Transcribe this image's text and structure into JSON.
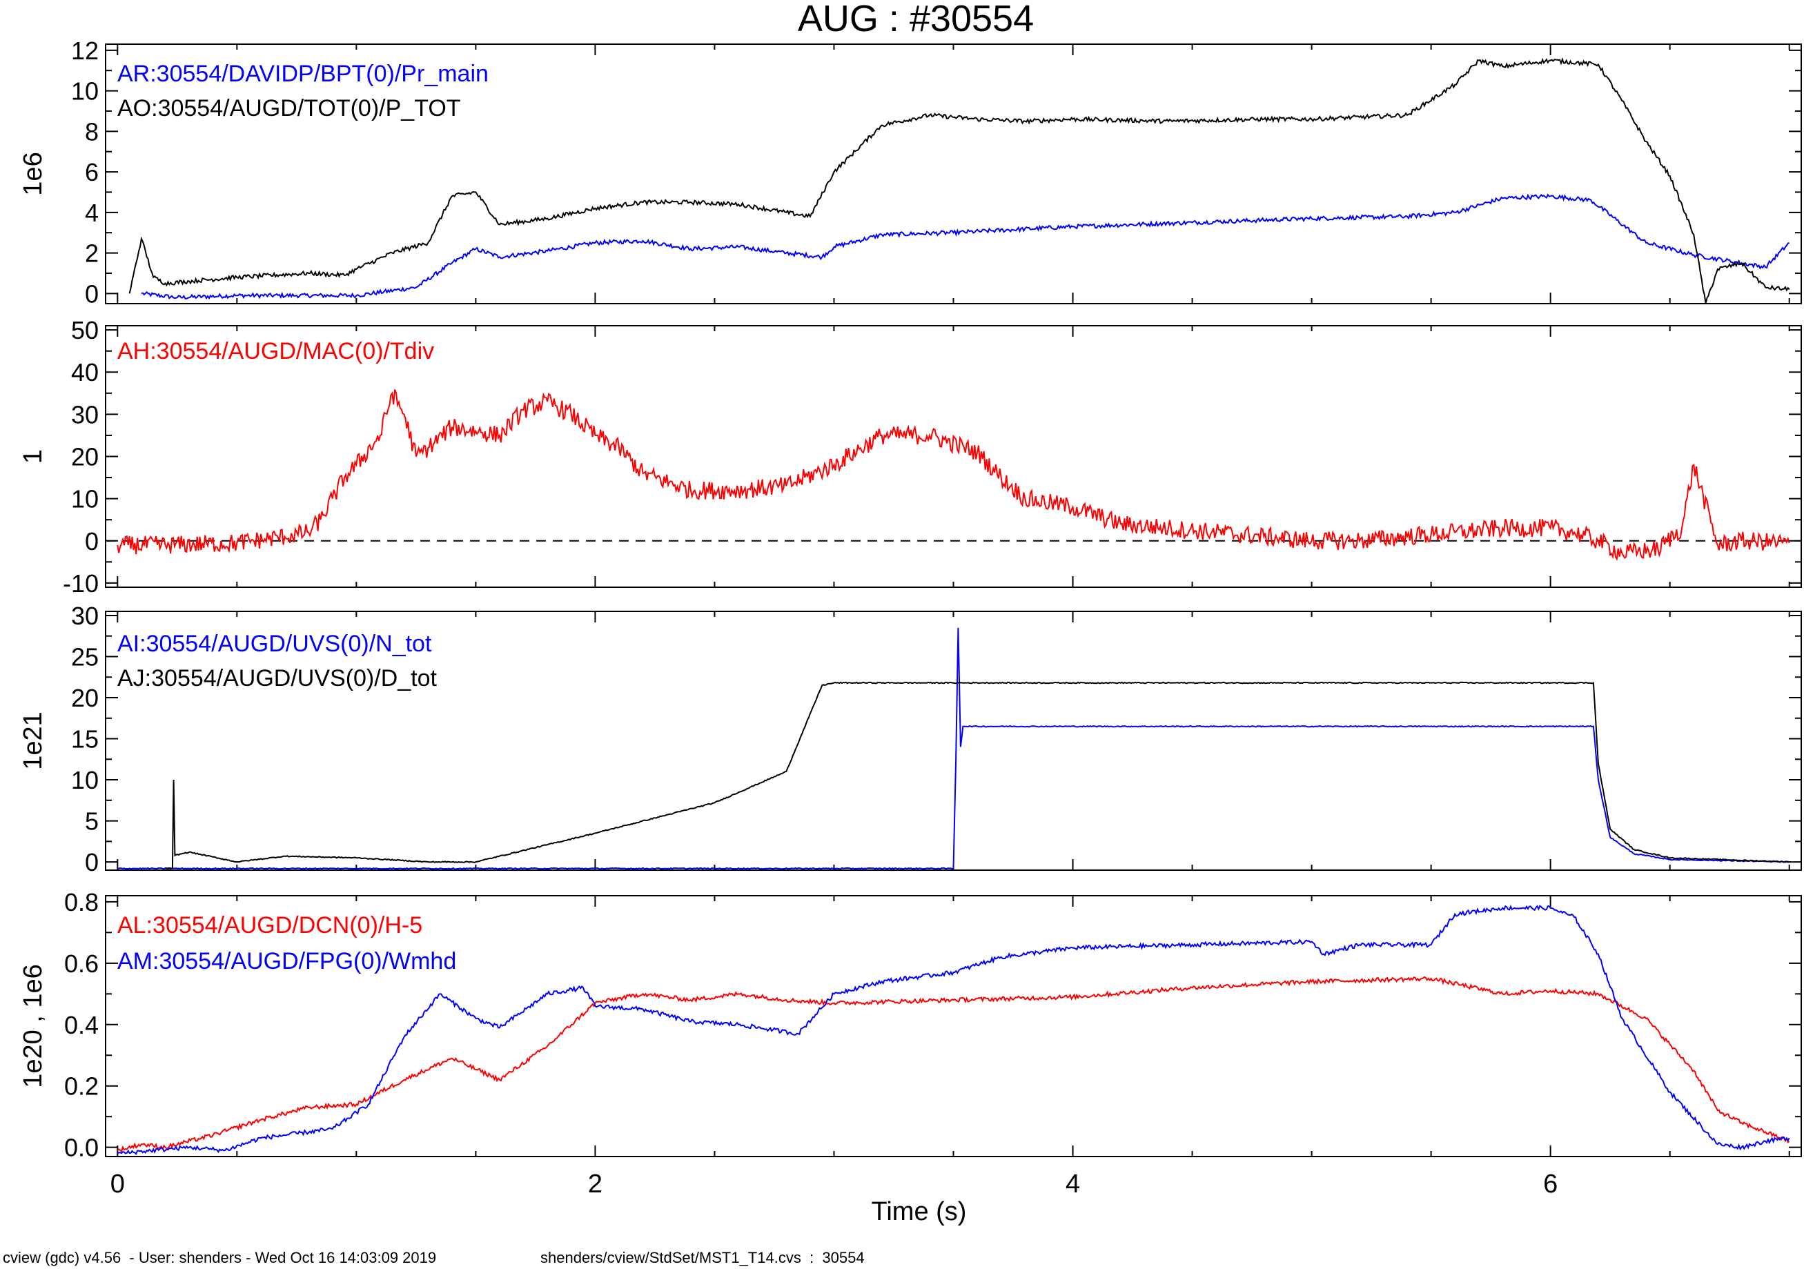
{
  "title": "AUG : #30554",
  "footer": {
    "left": "cview (gdc) v4.56  - User: shenders - Wed Oct 16 14:03:09 2019",
    "right": "shenders/cview/StdSet/MST1_T14.cvs  :  30554"
  },
  "chart_data": [
    {
      "type": "line",
      "ylabel": "1e6",
      "ylim": [
        -0.5,
        12.3
      ],
      "yticks": [
        0,
        2,
        4,
        6,
        8,
        10,
        12
      ],
      "xlim": [
        -0.05,
        7.05
      ],
      "legend": [
        "AR:30554/DAVIDP/BPT(0)/Pr_main",
        "AO:30554/AUGD/TOT(0)/P_TOT"
      ],
      "series": [
        {
          "name": "AR:30554/DAVIDP/BPT(0)/Pr_main",
          "color": "#0000ff",
          "x": [
            0.1,
            0.25,
            0.5,
            0.75,
            1.0,
            1.25,
            1.4,
            1.5,
            1.6,
            1.8,
            2.0,
            2.2,
            2.4,
            2.6,
            2.8,
            2.95,
            3.0,
            3.2,
            3.5,
            4.0,
            4.5,
            5.0,
            5.4,
            5.6,
            5.8,
            6.0,
            6.17,
            6.4,
            6.6,
            6.9,
            7.0
          ],
          "y": [
            0.0,
            -0.2,
            -0.1,
            -0.1,
            -0.1,
            0.3,
            1.5,
            2.2,
            1.8,
            2.1,
            2.5,
            2.6,
            2.2,
            2.3,
            2.0,
            1.8,
            2.3,
            2.9,
            3.0,
            3.3,
            3.5,
            3.7,
            3.8,
            4.0,
            4.7,
            4.8,
            4.6,
            2.5,
            1.9,
            1.3,
            2.5
          ]
        },
        {
          "name": "AO:30554/AUGD/TOT(0)/P_TOT",
          "color": "#000000",
          "x": [
            0.05,
            0.1,
            0.15,
            0.2,
            0.3,
            0.5,
            0.8,
            0.95,
            1.0,
            1.15,
            1.3,
            1.4,
            1.5,
            1.6,
            1.8,
            2.0,
            2.2,
            2.4,
            2.6,
            2.8,
            2.9,
            3.0,
            3.2,
            3.4,
            3.6,
            3.8,
            4.0,
            4.4,
            4.8,
            5.0,
            5.2,
            5.4,
            5.6,
            5.7,
            5.8,
            6.0,
            6.2,
            6.3,
            6.4,
            6.5,
            6.6,
            6.65,
            6.7,
            6.8,
            6.9,
            7.0
          ],
          "y": [
            0.0,
            2.7,
            0.8,
            0.5,
            0.6,
            0.8,
            1.0,
            0.9,
            1.2,
            2.0,
            2.5,
            4.8,
            5.0,
            3.4,
            3.7,
            4.2,
            4.5,
            4.5,
            4.4,
            4.0,
            3.8,
            6.0,
            8.3,
            8.8,
            8.6,
            8.5,
            8.6,
            8.5,
            8.6,
            8.6,
            8.7,
            8.8,
            10.3,
            11.5,
            11.2,
            11.5,
            11.3,
            9.5,
            7.5,
            5.8,
            2.9,
            -0.5,
            1.2,
            1.5,
            0.3,
            0.2
          ]
        }
      ]
    },
    {
      "type": "line",
      "ylabel": "1",
      "ylim": [
        -11,
        51
      ],
      "yticks": [
        -10,
        0,
        10,
        20,
        30,
        40,
        50
      ],
      "xlim": [
        -0.05,
        7.05
      ],
      "reference_line": 0,
      "legend": [
        "AH:30554/AUGD/MAC(0)/Tdiv"
      ],
      "series": [
        {
          "name": "AH:30554/AUGD/MAC(0)/Tdiv",
          "color": "#ff0000",
          "x": [
            0,
            0.2,
            0.5,
            0.7,
            0.8,
            0.85,
            0.9,
            0.95,
            1.0,
            1.1,
            1.15,
            1.2,
            1.25,
            1.3,
            1.4,
            1.5,
            1.6,
            1.7,
            1.8,
            1.9,
            2.0,
            2.1,
            2.2,
            2.4,
            2.6,
            2.8,
            3.0,
            3.2,
            3.4,
            3.6,
            3.7,
            3.8,
            4.0,
            4.2,
            4.4,
            4.6,
            4.8,
            5.0,
            5.2,
            5.4,
            5.6,
            5.8,
            6.0,
            6.1,
            6.2,
            6.3,
            6.45,
            6.55,
            6.6,
            6.7,
            6.8,
            7.0
          ],
          "y": [
            -1,
            -1,
            -0.5,
            1,
            2,
            5,
            10,
            15,
            18,
            25,
            35,
            30,
            20,
            22,
            27,
            26,
            25,
            31,
            33,
            30,
            25,
            22,
            16,
            12,
            12,
            13,
            18,
            25,
            25,
            21,
            15,
            10,
            8,
            4,
            3,
            2,
            1,
            0,
            0,
            1,
            2,
            3,
            3,
            2,
            0,
            -3,
            -2,
            3,
            18,
            -1,
            0,
            -0.5
          ]
        }
      ]
    },
    {
      "type": "line",
      "ylabel": "1e21",
      "ylim": [
        -1,
        30.5
      ],
      "yticks": [
        0,
        5,
        10,
        15,
        20,
        25,
        30
      ],
      "xlim": [
        -0.05,
        7.05
      ],
      "legend": [
        "AI:30554/AUGD/UVS(0)/N_tot",
        "AJ:30554/AUGD/UVS(0)/D_tot"
      ],
      "series": [
        {
          "name": "AI:30554/AUGD/UVS(0)/N_tot",
          "color": "#0000ff",
          "x": [
            0,
            3.5,
            3.51,
            3.52,
            3.53,
            3.54,
            3.55,
            6.18,
            6.2,
            6.25,
            6.35,
            6.5,
            7.0
          ],
          "y": [
            -0.8,
            -0.8,
            12,
            28.5,
            14,
            16.5,
            16.5,
            16.5,
            10,
            3,
            1,
            0.3,
            0
          ]
        },
        {
          "name": "AJ:30554/AUGD/UVS(0)/D_tot",
          "color": "#000000",
          "x": [
            0.2,
            0.23,
            0.235,
            0.24,
            0.3,
            0.5,
            0.7,
            1.0,
            1.3,
            1.5,
            2.0,
            2.5,
            2.8,
            2.95,
            3.0,
            3.5,
            6.0,
            6.18,
            6.2,
            6.25,
            6.35,
            6.5,
            7.0
          ],
          "y": [
            -0.8,
            -0.8,
            10,
            0.8,
            1.2,
            0,
            0.7,
            0.5,
            0,
            0,
            3.5,
            7.2,
            11,
            21.5,
            21.8,
            21.8,
            21.8,
            21.8,
            12,
            4,
            1.5,
            0.5,
            0
          ]
        }
      ]
    },
    {
      "type": "line",
      "ylabel": "1e20 , 1e6",
      "ylim": [
        -0.03,
        0.82
      ],
      "yticks": [
        0.0,
        0.2,
        0.4,
        0.6,
        0.8
      ],
      "xlim": [
        -0.05,
        7.05
      ],
      "xticks": [
        0,
        2,
        4,
        6
      ],
      "xlabel": "Time (s)",
      "legend": [
        "AL:30554/AUGD/DCN(0)/H-5",
        "AM:30554/AUGD/FPG(0)/Wmhd"
      ],
      "series": [
        {
          "name": "AL:30554/AUGD/DCN(0)/H-5",
          "color": "#ff0000",
          "x": [
            0,
            0.1,
            0.2,
            0.4,
            0.6,
            0.8,
            1.0,
            1.2,
            1.4,
            1.6,
            1.8,
            2.0,
            2.2,
            2.4,
            2.6,
            2.8,
            3.0,
            3.5,
            4.0,
            4.5,
            5.0,
            5.5,
            5.8,
            6.0,
            6.2,
            6.4,
            6.6,
            6.7,
            6.8,
            6.9,
            7.0
          ],
          "y": [
            -0.01,
            0.01,
            0.0,
            0.04,
            0.09,
            0.13,
            0.14,
            0.22,
            0.29,
            0.22,
            0.33,
            0.47,
            0.5,
            0.48,
            0.5,
            0.48,
            0.47,
            0.48,
            0.49,
            0.52,
            0.54,
            0.55,
            0.5,
            0.51,
            0.5,
            0.42,
            0.25,
            0.12,
            0.08,
            0.05,
            0.02
          ]
        },
        {
          "name": "AM:30554/AUGD/FPG(0)/Wmhd",
          "color": "#0000ff",
          "x": [
            0,
            0.3,
            0.45,
            0.6,
            0.9,
            1.05,
            1.2,
            1.35,
            1.5,
            1.6,
            1.8,
            1.95,
            2.0,
            2.2,
            2.4,
            2.6,
            2.85,
            3.0,
            3.2,
            3.5,
            3.7,
            4.0,
            4.5,
            5.0,
            5.05,
            5.2,
            5.5,
            5.6,
            5.8,
            6.0,
            6.1,
            6.2,
            6.3,
            6.5,
            6.7,
            6.8,
            6.9,
            7.0
          ],
          "y": [
            -0.02,
            0.0,
            -0.01,
            0.03,
            0.06,
            0.14,
            0.36,
            0.5,
            0.42,
            0.39,
            0.5,
            0.52,
            0.46,
            0.45,
            0.41,
            0.4,
            0.37,
            0.5,
            0.54,
            0.57,
            0.62,
            0.65,
            0.66,
            0.67,
            0.63,
            0.66,
            0.66,
            0.76,
            0.78,
            0.78,
            0.75,
            0.63,
            0.42,
            0.18,
            0.01,
            0.0,
            0.02,
            0.03
          ]
        }
      ]
    }
  ]
}
